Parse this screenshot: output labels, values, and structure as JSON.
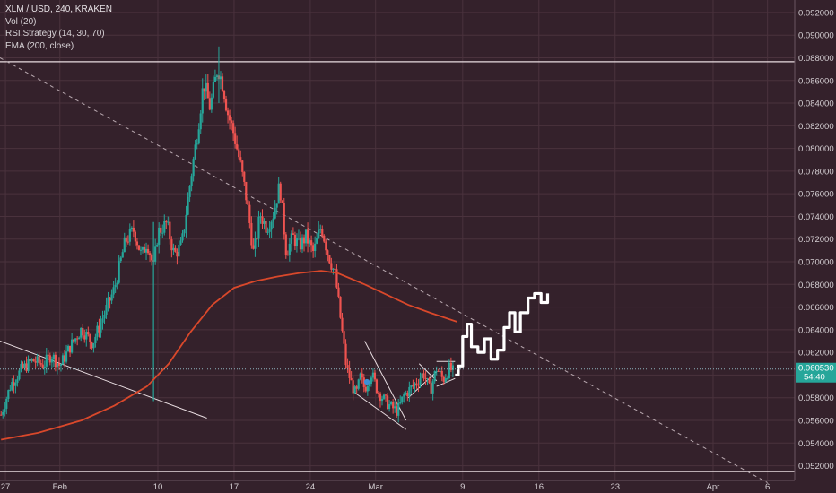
{
  "legend": {
    "symbol": "XLM / USD, 240, KRAKEN",
    "vol": "Vol (20)",
    "rsi": "RSI Strategy (14, 30, 70)",
    "ema": "EMA (200, close)"
  },
  "colors": {
    "background": "#34212b",
    "grid": "#4a323d",
    "up": "#26a69a",
    "down": "#ef5350",
    "ema": "#d9482b",
    "drawing": "#e8dce0",
    "projection": "#ffffff",
    "price_tag": "#26a69a"
  },
  "chart_data": {
    "type": "candlestick",
    "title": "",
    "y_ticks": [
      0.052,
      0.054,
      0.056,
      0.058,
      0.06,
      0.062,
      0.064,
      0.066,
      0.068,
      0.07,
      0.072,
      0.074,
      0.076,
      0.078,
      0.08,
      0.082,
      0.084,
      0.086,
      0.088,
      0.09,
      0.092
    ],
    "y_tick_labels": [
      "0.052000",
      "0.054000",
      "0.056000",
      "0.058000",
      "0.060000",
      "0.062000",
      "0.064000",
      "0.066000",
      "0.068000",
      "0.070000",
      "0.072000",
      "0.074000",
      "0.076000",
      "0.078000",
      "0.080000",
      "0.082000",
      "0.084000",
      "0.086000",
      "0.088000",
      "0.090000",
      "0.092000"
    ],
    "ylim": [
      0.0507,
      0.0931
    ],
    "x_ticks": [
      {
        "label": "27",
        "day": -5
      },
      {
        "label": "Feb",
        "day": 0
      },
      {
        "label": "10",
        "day": 9
      },
      {
        "label": "17",
        "day": 16
      },
      {
        "label": "24",
        "day": 23
      },
      {
        "label": "Mar",
        "day": 29
      },
      {
        "label": "9",
        "day": 37
      },
      {
        "label": "16",
        "day": 44
      },
      {
        "label": "23",
        "day": 51
      },
      {
        "label": "Apr",
        "day": 60
      },
      {
        "label": "6",
        "day": 65
      }
    ],
    "xlim": [
      -5.5,
      67.5
    ],
    "last_price": 0.06053,
    "last_price_label": "0.060530",
    "countdown_label": "54:40",
    "price_path": [
      [
        -5.4,
        0.0565
      ],
      [
        -4.5,
        0.0592
      ],
      [
        -3.5,
        0.0605
      ],
      [
        -2.5,
        0.0613
      ],
      [
        -1.5,
        0.0609
      ],
      [
        -0.8,
        0.0618
      ],
      [
        0.0,
        0.0608
      ],
      [
        1.0,
        0.0626
      ],
      [
        2.0,
        0.0641
      ],
      [
        3.0,
        0.0628
      ],
      [
        4.0,
        0.0652
      ],
      [
        5.0,
        0.0676
      ],
      [
        6.0,
        0.0718
      ],
      [
        6.8,
        0.0728
      ],
      [
        7.5,
        0.0705
      ],
      [
        8.0,
        0.0718
      ],
      [
        8.6,
        0.0695
      ],
      [
        9.0,
        0.0726
      ],
      [
        9.8,
        0.0734
      ],
      [
        10.5,
        0.0706
      ],
      [
        11.2,
        0.0715
      ],
      [
        12.0,
        0.0772
      ],
      [
        12.6,
        0.0812
      ],
      [
        13.2,
        0.0858
      ],
      [
        13.8,
        0.0836
      ],
      [
        14.5,
        0.0872
      ],
      [
        15.0,
        0.0855
      ],
      [
        15.4,
        0.0832
      ],
      [
        16.0,
        0.0812
      ],
      [
        16.6,
        0.0785
      ],
      [
        17.2,
        0.0752
      ],
      [
        17.8,
        0.0706
      ],
      [
        18.4,
        0.0742
      ],
      [
        19.0,
        0.073
      ],
      [
        19.6,
        0.0742
      ],
      [
        20.2,
        0.0768
      ],
      [
        20.8,
        0.0708
      ],
      [
        21.4,
        0.0722
      ],
      [
        22.0,
        0.0714
      ],
      [
        22.6,
        0.0722
      ],
      [
        23.3,
        0.0708
      ],
      [
        24.0,
        0.0732
      ],
      [
        24.6,
        0.0708
      ],
      [
        25.3,
        0.0688
      ],
      [
        25.8,
        0.0648
      ],
      [
        26.3,
        0.0608
      ],
      [
        26.8,
        0.0592
      ],
      [
        27.2,
        0.0582
      ],
      [
        27.6,
        0.0598
      ],
      [
        28.0,
        0.0588
      ],
      [
        28.6,
        0.0602
      ],
      [
        29.2,
        0.0586
      ],
      [
        29.8,
        0.0578
      ],
      [
        30.4,
        0.0572
      ],
      [
        31.0,
        0.0568
      ],
      [
        31.6,
        0.0582
      ],
      [
        32.2,
        0.0588
      ],
      [
        32.8,
        0.0594
      ],
      [
        33.4,
        0.0602
      ],
      [
        34.0,
        0.0586
      ],
      [
        34.6,
        0.0606
      ],
      [
        35.2,
        0.0596
      ],
      [
        35.8,
        0.0606
      ],
      [
        36.2,
        0.0602
      ]
    ],
    "ema": [
      [
        -5.4,
        0.0543
      ],
      [
        -2,
        0.0549
      ],
      [
        2,
        0.056
      ],
      [
        5,
        0.0573
      ],
      [
        8,
        0.059
      ],
      [
        10,
        0.061
      ],
      [
        12,
        0.0638
      ],
      [
        14,
        0.0662
      ],
      [
        16,
        0.0677
      ],
      [
        18,
        0.0683
      ],
      [
        20,
        0.0687
      ],
      [
        22,
        0.069
      ],
      [
        24,
        0.0692
      ],
      [
        25.5,
        0.069
      ],
      [
        28,
        0.068
      ],
      [
        32,
        0.0662
      ],
      [
        34,
        0.0655
      ],
      [
        36.5,
        0.0647
      ]
    ],
    "projection": [
      [
        36.3,
        0.06
      ],
      [
        36.6,
        0.0608
      ],
      [
        37.0,
        0.0634
      ],
      [
        37.4,
        0.0645
      ],
      [
        37.8,
        0.0625
      ],
      [
        38.4,
        0.062
      ],
      [
        39.0,
        0.0632
      ],
      [
        39.6,
        0.0614
      ],
      [
        40.2,
        0.0622
      ],
      [
        40.8,
        0.0642
      ],
      [
        41.3,
        0.0655
      ],
      [
        41.8,
        0.0638
      ],
      [
        42.3,
        0.0655
      ],
      [
        43.0,
        0.0668
      ],
      [
        43.6,
        0.0672
      ],
      [
        44.2,
        0.0664
      ],
      [
        44.8,
        0.0672
      ]
    ],
    "lines": [
      {
        "kind": "horizontal",
        "y": 0.08765
      },
      {
        "kind": "horizontal",
        "y": 0.05148
      },
      {
        "kind": "dashed",
        "from": [
          -5.5,
          0.088
        ],
        "to": [
          65,
          0.0505
        ]
      },
      {
        "kind": "solid",
        "from": [
          -5.5,
          0.063
        ],
        "to": [
          13.5,
          0.0562
        ]
      },
      {
        "kind": "solid",
        "from": [
          27.0,
          0.0585
        ],
        "to": [
          31.8,
          0.0552
        ]
      },
      {
        "kind": "solid",
        "from": [
          28.0,
          0.063
        ],
        "to": [
          31.8,
          0.056
        ]
      },
      {
        "kind": "solid",
        "from": [
          32.0,
          0.058
        ],
        "to": [
          34.6,
          0.0603
        ]
      },
      {
        "kind": "solid",
        "from": [
          33.0,
          0.061
        ],
        "to": [
          34.6,
          0.0595
        ]
      },
      {
        "kind": "solid",
        "from": [
          34.6,
          0.059
        ],
        "to": [
          36.3,
          0.0597
        ]
      },
      {
        "kind": "solid",
        "from": [
          34.6,
          0.0612
        ],
        "to": [
          36.3,
          0.0612
        ]
      }
    ]
  }
}
